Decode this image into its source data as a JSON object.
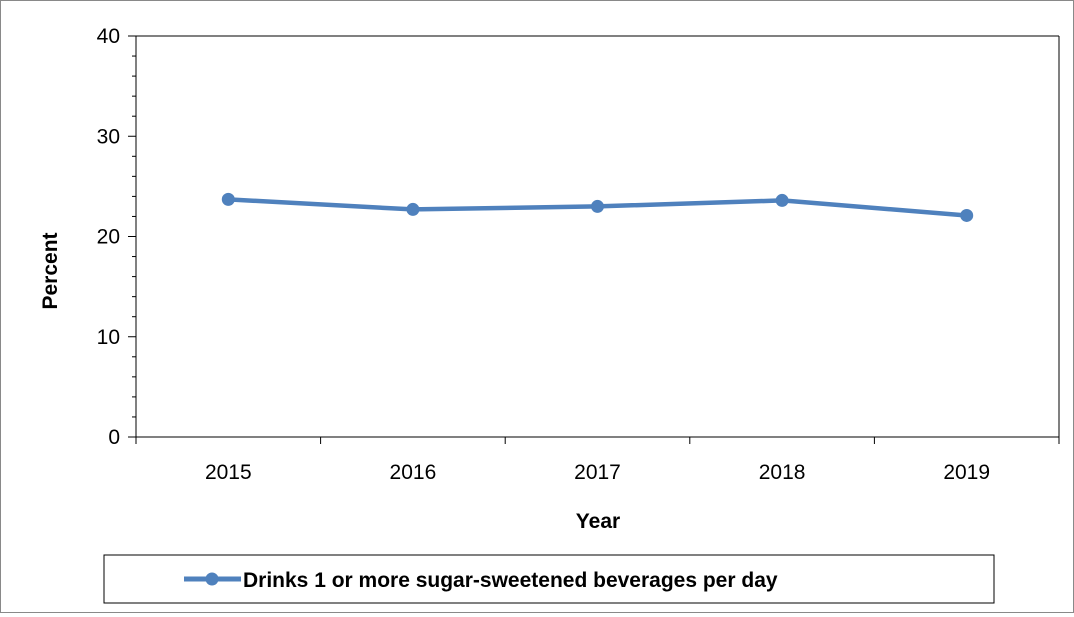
{
  "chart_data": {
    "type": "line",
    "categories": [
      "2015",
      "2016",
      "2017",
      "2018",
      "2019"
    ],
    "series": [
      {
        "name": "Drinks 1 or more sugar-sweetened beverages per day",
        "values": [
          23.7,
          22.7,
          23.0,
          23.6,
          22.1
        ],
        "color": "#4f81bd"
      }
    ],
    "xlabel": "Year",
    "ylabel": "Percent",
    "ylim": [
      0,
      40
    ],
    "yticks": [
      "0",
      "10",
      "20",
      "30",
      "40"
    ],
    "minor_ticks_per_major": 5,
    "grid": false,
    "legend_position": "bottom"
  }
}
